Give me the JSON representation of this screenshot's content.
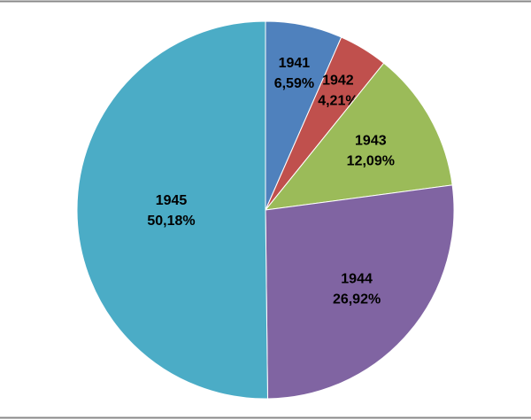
{
  "chart_data": {
    "type": "pie",
    "categories": [
      "1941",
      "1942",
      "1943",
      "1944",
      "1945"
    ],
    "values": [
      6.59,
      4.21,
      12.09,
      26.92,
      50.18
    ],
    "value_labels": [
      "6,59%",
      "4,21%",
      "12,09%",
      "26,92%",
      "50,18%"
    ],
    "colors": [
      "#4f81bd",
      "#c0504d",
      "#9bbb59",
      "#8064a2",
      "#4bacc6"
    ]
  }
}
